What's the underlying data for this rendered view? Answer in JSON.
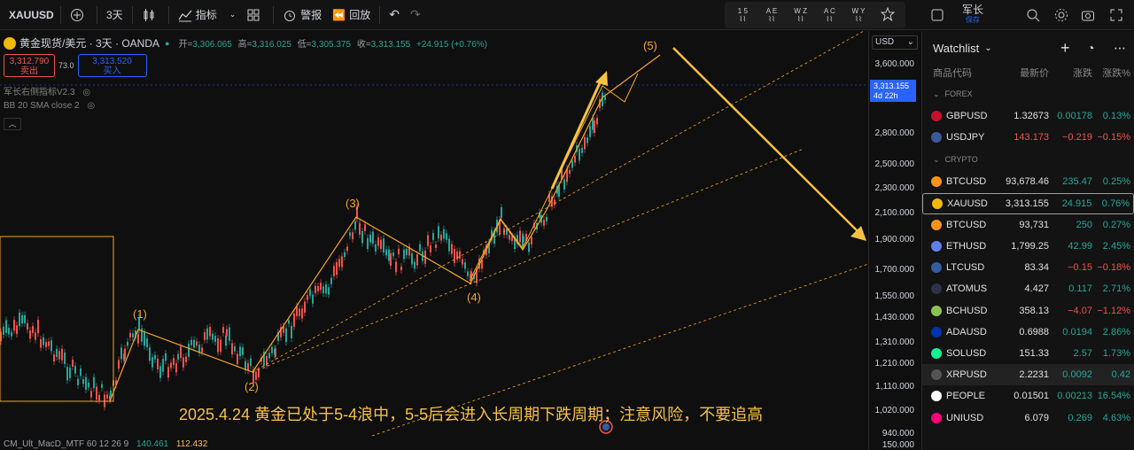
{
  "toolbar": {
    "symbol": "XAUUSD",
    "interval": "3天",
    "indicators": "指标",
    "alerts": "警报",
    "replay": "回放",
    "elliott_buttons": [
      "1 5",
      "A E",
      "W Z",
      "A C",
      "W Y"
    ],
    "account": "军长",
    "account_sub": "保存"
  },
  "legend": {
    "title": "黄金现货/美元 · 3天 · OANDA",
    "open_label": "开=",
    "open": "3,306.065",
    "high_label": "高=",
    "high": "3,316.025",
    "low_label": "低=",
    "low": "3,305.375",
    "close_label": "收=",
    "close": "3,313.155",
    "change": "+24.915 (+0.76%)",
    "sell_price": "3,312.790",
    "sell_label": "卖出",
    "spread": "73.0",
    "buy_price": "3,313.520",
    "buy_label": "买入",
    "indicator1": "军长右侧指标V2.3",
    "indicator2": "BB 20 SMA close 2"
  },
  "price_axis": {
    "currency": "USD",
    "labels": [
      "3,600.000",
      "2,800.000",
      "2,500.000",
      "2,300.000",
      "2,100.000",
      "1,900.000",
      "1,700.000",
      "1,550.000",
      "1,430.000",
      "1,310.000",
      "1,210.000",
      "1,110.000",
      "1,020.000",
      "940.000",
      "150.000"
    ],
    "current_price": "3,313.155",
    "countdown": "4d 22h"
  },
  "wave_labels": [
    "(1)",
    "(2)",
    "(3)",
    "(4)",
    "(5)"
  ],
  "annotation": "2025.4.24  黄金已处于5-4浪中，5-5后会进入长周期下跌周期；注意风险，不要追高",
  "bottom_indicator": {
    "name": "CM_Ult_MacD_MTF 60 12 26 9",
    "v1": "140.461",
    "v2": "112.432"
  },
  "watchlist": {
    "title": "Watchlist",
    "columns": [
      "商品代码",
      "最新价",
      "涨跌",
      "涨跌%"
    ],
    "sections": [
      {
        "name": "FOREX",
        "rows": [
          {
            "symbol": "GBPUSD",
            "price": "1.32673",
            "change": "0.00178",
            "pct": "0.13%",
            "dir": "up",
            "icon": "#c8102e"
          },
          {
            "symbol": "USDJPY",
            "price": "143.173",
            "change": "−0.219",
            "pct": "−0.15%",
            "dir": "dn",
            "icon": "#3c5a9a"
          }
        ]
      },
      {
        "name": "CRYPTO",
        "rows": [
          {
            "symbol": "BTCUSD",
            "price": "93,678.46",
            "change": "235.47",
            "pct": "0.25%",
            "dir": "up",
            "icon": "#f7931a"
          },
          {
            "symbol": "XAUUSD",
            "price": "3,313.155",
            "change": "24.915",
            "pct": "0.76%",
            "dir": "up",
            "icon": "#f0b90b",
            "selected": true
          },
          {
            "symbol": "BTCUSD",
            "price": "93,731",
            "change": "250",
            "pct": "0.27%",
            "dir": "up",
            "icon": "#f7931a"
          },
          {
            "symbol": "ETHUSD",
            "price": "1,799.25",
            "change": "42.99",
            "pct": "2.45%",
            "dir": "up",
            "icon": "#627eea"
          },
          {
            "symbol": "LTCUSD",
            "price": "83.34",
            "change": "−0.15",
            "pct": "−0.18%",
            "dir": "dn",
            "icon": "#345d9d"
          },
          {
            "symbol": "ATOMUS",
            "price": "4.427",
            "change": "0.117",
            "pct": "2.71%",
            "dir": "up",
            "icon": "#2e3148"
          },
          {
            "symbol": "BCHUSD",
            "price": "358.13",
            "change": "−4.07",
            "pct": "−1.12%",
            "dir": "dn",
            "icon": "#8dc351"
          },
          {
            "symbol": "ADAUSD",
            "price": "0.6988",
            "change": "0.0194",
            "pct": "2.86%",
            "dir": "up",
            "icon": "#0033ad"
          },
          {
            "symbol": "SOLUSD",
            "price": "151.33",
            "change": "2.57",
            "pct": "1.73%",
            "dir": "up",
            "icon": "#14f195"
          },
          {
            "symbol": "XRPUSD",
            "price": "2.2231",
            "change": "0.0092",
            "pct": "0.42",
            "dir": "up",
            "icon": "#555555",
            "hover": true
          },
          {
            "symbol": "PEOPLE",
            "price": "0.01501",
            "change": "0.00213",
            "pct": "16.54%",
            "dir": "up",
            "icon": "#ffffff"
          },
          {
            "symbol": "UNIUSD",
            "price": "6.079",
            "change": "0.269",
            "pct": "4.63%",
            "dir": "up",
            "icon": "#ff007a"
          }
        ]
      }
    ]
  },
  "colors": {
    "accent": "#2962ff",
    "up": "#26a69a",
    "down": "#ef5350",
    "wave": "#f5a623"
  }
}
